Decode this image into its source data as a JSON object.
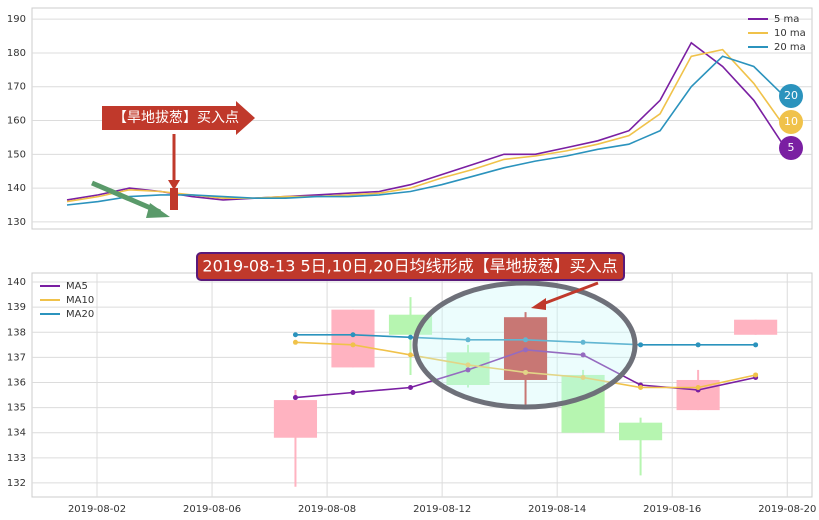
{
  "chart_data": [
    {
      "type": "line",
      "categories": [
        null,
        null,
        null,
        null,
        null,
        null,
        null,
        null,
        null,
        null,
        null,
        null,
        null,
        null,
        null,
        null,
        null,
        null,
        null,
        null,
        null,
        null,
        null,
        null
      ],
      "series": [
        {
          "name": "5 ma",
          "color": "#7a1fa2",
          "values": [
            136.5,
            138,
            140,
            139,
            137.5,
            136.5,
            137,
            137.5,
            138,
            138.5,
            139,
            141,
            144,
            147,
            150,
            150,
            152,
            154,
            157,
            166,
            183,
            176,
            166,
            152
          ]
        },
        {
          "name": "10 ma",
          "color": "#f0c24a",
          "values": [
            136,
            137.5,
            139.5,
            139,
            138,
            137,
            137,
            137.5,
            137.5,
            138,
            138.5,
            140,
            143,
            145.5,
            148.5,
            149.5,
            151,
            153,
            155.5,
            162,
            179,
            181,
            171,
            158
          ]
        },
        {
          "name": "20 ma",
          "color": "#2b93bd",
          "values": [
            135,
            136,
            137.5,
            138,
            138,
            137.5,
            137,
            137,
            137.5,
            137.5,
            138,
            139,
            141,
            143.5,
            146,
            148,
            149.5,
            151.5,
            153,
            157,
            170,
            179,
            176,
            167
          ]
        }
      ],
      "ylim": [
        127.9,
        193.3
      ],
      "yticks": [
        130,
        140,
        150,
        160,
        170,
        180,
        190
      ],
      "grid": true,
      "legend": "upper right",
      "annotation": "【旱地拔葱】买入点",
      "end_labels": [
        "20",
        "10",
        "5"
      ]
    },
    {
      "type": "candlestick",
      "title": "2019-08-13 5日,10日,20日均线形成【旱地拔葱】买入点",
      "x": [
        3.45,
        4.45,
        5.45,
        6.45,
        7.45,
        8.45,
        9.45,
        10.45,
        11.45
      ],
      "open": [
        133.8,
        136.6,
        138.7,
        137.2,
        136.1,
        136.3,
        134.4,
        134.9,
        137.9
      ],
      "high": [
        135.7,
        138.9,
        139.4,
        137.5,
        138.8,
        136.5,
        134.6,
        136.5,
        138.5
      ],
      "low": [
        131.85,
        136.6,
        136.3,
        135.8,
        135.0,
        134.0,
        132.3,
        134.9,
        137.9
      ],
      "close": [
        135.3,
        138.9,
        137.9,
        135.9,
        138.6,
        134.0,
        133.7,
        136.1,
        138.5
      ],
      "candle_colors": [
        "#ffb3c1",
        "#ffb3c1",
        "#b6f5b0",
        "#b6f5b0",
        "#c8322d",
        "#b6f5b0",
        "#b6f5b0",
        "#ffb3c1",
        "#ffb3c1"
      ],
      "series": [
        {
          "name": "MA5",
          "color": "#7a1fa2",
          "values": [
            135.4,
            135.6,
            135.8,
            136.5,
            137.3,
            137.1,
            135.9,
            135.7,
            136.2
          ]
        },
        {
          "name": "MA10",
          "color": "#f0c24a",
          "values": [
            137.6,
            137.5,
            137.1,
            136.7,
            136.4,
            136.2,
            135.8,
            135.8,
            136.3
          ]
        },
        {
          "name": "MA20",
          "color": "#2b93bd",
          "values": [
            137.9,
            137.9,
            137.8,
            137.7,
            137.7,
            137.6,
            137.5,
            137.5,
            137.5
          ]
        }
      ],
      "xlim": [
        -1.13,
        12.43
      ],
      "xticks": [
        {
          "value": 0,
          "label": "2019-08-02"
        },
        {
          "value": 2,
          "label": "2019-08-06"
        },
        {
          "value": 4,
          "label": "2019-08-08"
        },
        {
          "value": 6,
          "label": "2019-08-12"
        },
        {
          "value": 8,
          "label": "2019-08-14"
        },
        {
          "value": 10,
          "label": "2019-08-16"
        },
        {
          "value": 12,
          "label": "2019-08-20"
        }
      ],
      "ylim": [
        131.44,
        140.36
      ],
      "yticks": [
        132,
        133,
        134,
        135,
        136,
        137,
        138,
        139,
        140
      ],
      "grid": true,
      "legend": "upper left"
    }
  ]
}
